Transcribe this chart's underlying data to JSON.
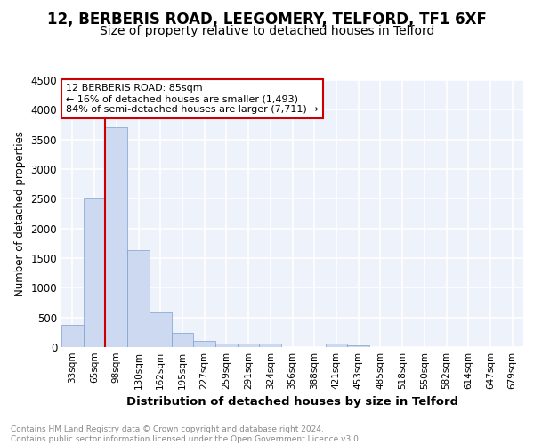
{
  "title1": "12, BERBERIS ROAD, LEEGOMERY, TELFORD, TF1 6XF",
  "title2": "Size of property relative to detached houses in Telford",
  "xlabel": "Distribution of detached houses by size in Telford",
  "ylabel": "Number of detached properties",
  "categories": [
    "33sqm",
    "65sqm",
    "98sqm",
    "130sqm",
    "162sqm",
    "195sqm",
    "227sqm",
    "259sqm",
    "291sqm",
    "324sqm",
    "356sqm",
    "388sqm",
    "421sqm",
    "453sqm",
    "485sqm",
    "518sqm",
    "550sqm",
    "582sqm",
    "614sqm",
    "647sqm",
    "679sqm"
  ],
  "values": [
    380,
    2500,
    3700,
    1640,
    585,
    240,
    110,
    65,
    60,
    55,
    0,
    0,
    55,
    25,
    0,
    0,
    0,
    0,
    0,
    0,
    0
  ],
  "bar_color": "#ccd9f0",
  "bar_edge_color": "#7ca0cc",
  "vline_color": "#cc0000",
  "vline_x": 1.5,
  "annotation_text": "12 BERBERIS ROAD: 85sqm\n← 16% of detached houses are smaller (1,493)\n84% of semi-detached houses are larger (7,711) →",
  "annotation_box_color": "#ffffff",
  "annotation_box_edge": "#cc0000",
  "ylim": [
    0,
    4500
  ],
  "yticks": [
    0,
    500,
    1000,
    1500,
    2000,
    2500,
    3000,
    3500,
    4000,
    4500
  ],
  "footer_text": "Contains HM Land Registry data © Crown copyright and database right 2024.\nContains public sector information licensed under the Open Government Licence v3.0.",
  "bg_color": "#eef2fb",
  "grid_color": "#ffffff",
  "title1_fontsize": 12,
  "title2_fontsize": 10
}
